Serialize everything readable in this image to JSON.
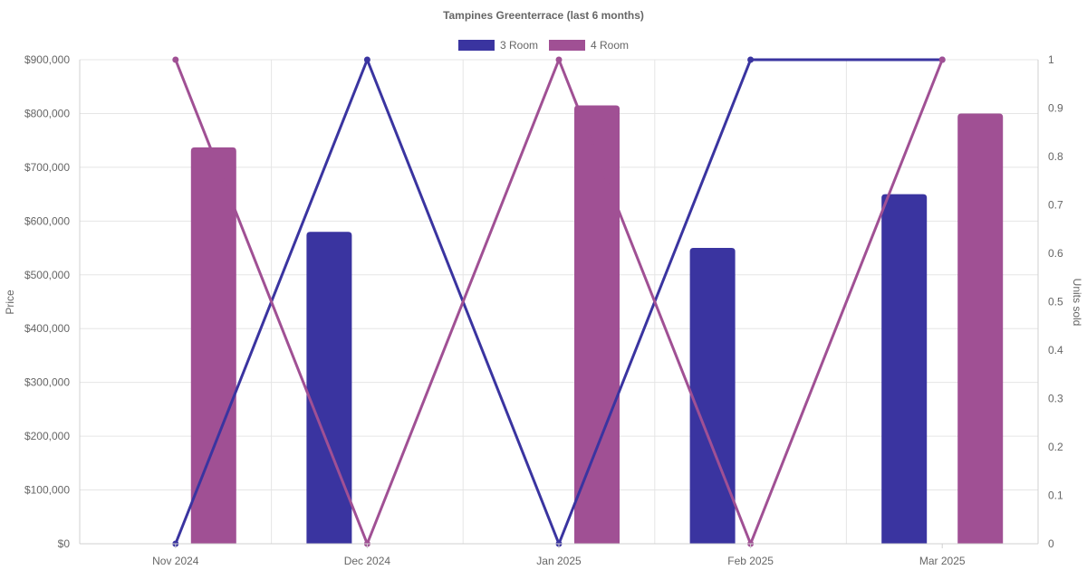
{
  "chart_data": {
    "type": "bar",
    "title": "Tampines Greenterrace (last 6 months)",
    "categories": [
      "Nov 2024",
      "Dec 2024",
      "Jan 2025",
      "Feb 2025",
      "Mar 2025"
    ],
    "y_left": {
      "label": "Price",
      "min": 0,
      "max": 900000,
      "ticks": [
        0,
        100000,
        200000,
        300000,
        400000,
        500000,
        600000,
        700000,
        800000,
        900000
      ],
      "tick_labels": [
        "$0",
        "$100,000",
        "$200,000",
        "$300,000",
        "$400,000",
        "$500,000",
        "$600,000",
        "$700,000",
        "$800,000",
        "$900,000"
      ]
    },
    "y_right": {
      "label": "Units sold",
      "min": 0,
      "max": 1,
      "ticks": [
        0,
        0.1,
        0.2,
        0.3,
        0.4,
        0.5,
        0.6,
        0.7,
        0.8,
        0.9,
        1
      ],
      "tick_labels": [
        "0",
        "0.1",
        "0.2",
        "0.3",
        "0.4",
        "0.5",
        "0.6",
        "0.7",
        "0.8",
        "0.9",
        "1"
      ]
    },
    "grid": true,
    "legend_position": "top-center",
    "series": [
      {
        "name": "3 Room",
        "color": "#3a34a0",
        "price": [
          null,
          580000,
          null,
          550000,
          650000
        ],
        "units_sold": [
          0,
          1,
          0,
          1,
          1
        ]
      },
      {
        "name": "4 Room",
        "color": "#a05094",
        "price": [
          737000,
          null,
          815000,
          null,
          800000
        ],
        "units_sold": [
          1,
          0,
          1,
          0,
          1
        ]
      }
    ]
  }
}
